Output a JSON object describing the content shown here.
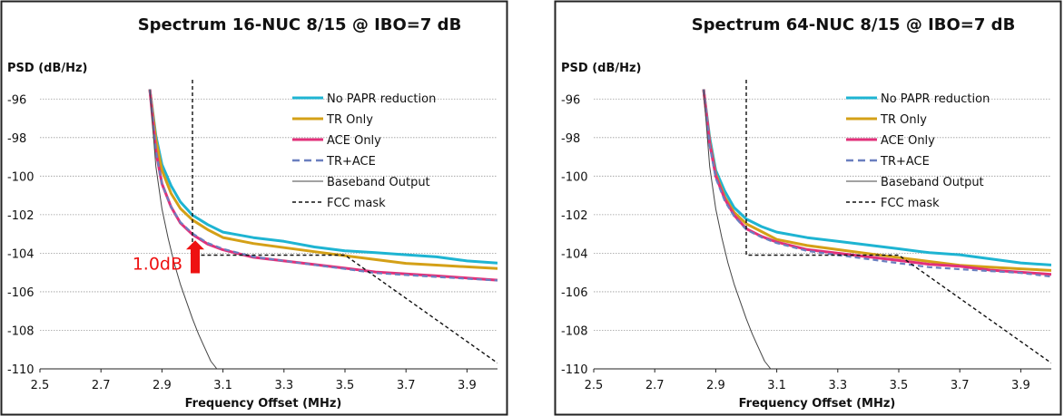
{
  "chart_data": [
    {
      "type": "line",
      "title": "Spectrum 16-NUC 8/15 @ IBO=7 dB",
      "xlabel": "Frequency Offset (MHz)",
      "ylabel": "PSD (dB/Hz)",
      "xlim": [
        2.5,
        4.0
      ],
      "ylim": [
        -110,
        -95
      ],
      "xticks": [
        "2.5",
        "2.7",
        "2.9",
        "3.1",
        "3.3",
        "3.5",
        "3.7",
        "3.9"
      ],
      "yticks": [
        "-96",
        "-98",
        "-100",
        "-102",
        "-104",
        "-106",
        "-108",
        "-110"
      ],
      "grid": "horizontal",
      "legend_position": "top-right",
      "series": [
        {
          "name": "No PAPR reduction",
          "color": "#1eb4d2",
          "style": "solid",
          "x": [
            2.86,
            2.88,
            2.9,
            2.93,
            2.96,
            3.0,
            3.05,
            3.1,
            3.2,
            3.3,
            3.4,
            3.5,
            3.6,
            3.7,
            3.8,
            3.9,
            4.0
          ],
          "y": [
            -95.5,
            -97.9,
            -99.4,
            -100.5,
            -101.3,
            -102.0,
            -102.5,
            -102.9,
            -103.2,
            -103.4,
            -103.7,
            -103.9,
            -104.0,
            -104.1,
            -104.2,
            -104.4,
            -104.5
          ]
        },
        {
          "name": "TR Only",
          "color": "#d4a017",
          "style": "solid",
          "x": [
            2.86,
            2.88,
            2.9,
            2.93,
            2.96,
            3.0,
            3.05,
            3.1,
            3.2,
            3.3,
            3.4,
            3.5,
            3.6,
            3.7,
            3.8,
            3.9,
            4.0
          ],
          "y": [
            -95.5,
            -98.1,
            -99.7,
            -100.9,
            -101.7,
            -102.3,
            -102.8,
            -103.2,
            -103.5,
            -103.7,
            -103.9,
            -104.1,
            -104.3,
            -104.5,
            -104.6,
            -104.7,
            -104.8
          ]
        },
        {
          "name": "ACE Only",
          "color": "#e2307a",
          "style": "solid",
          "x": [
            2.86,
            2.88,
            2.9,
            2.93,
            2.96,
            3.0,
            3.05,
            3.1,
            3.2,
            3.3,
            3.4,
            3.5,
            3.6,
            3.7,
            3.8,
            3.9,
            4.0
          ],
          "y": [
            -95.5,
            -98.7,
            -100.4,
            -101.6,
            -102.4,
            -103.0,
            -103.5,
            -103.8,
            -104.2,
            -104.4,
            -104.6,
            -104.8,
            -105.0,
            -105.1,
            -105.2,
            -105.3,
            -105.4
          ]
        },
        {
          "name": "TR+ACE",
          "color": "#6a7fbf",
          "style": "dashed",
          "x": [
            2.86,
            2.88,
            2.9,
            2.93,
            2.96,
            3.0,
            3.05,
            3.1,
            3.2,
            3.3,
            3.4,
            3.5,
            3.6,
            3.7,
            3.8,
            3.9,
            4.0
          ],
          "y": [
            -95.5,
            -98.7,
            -100.4,
            -101.6,
            -102.4,
            -103.0,
            -103.5,
            -103.8,
            -104.2,
            -104.4,
            -104.6,
            -104.8,
            -105.0,
            -105.1,
            -105.2,
            -105.3,
            -105.4
          ]
        },
        {
          "name": "Baseband Output",
          "color": "#444444",
          "style": "thin",
          "x": [
            2.86,
            2.88,
            2.9,
            2.92,
            2.94,
            2.96,
            2.98,
            3.0,
            3.02,
            3.04,
            3.06,
            3.08
          ],
          "y": [
            -95.5,
            -99.5,
            -101.7,
            -103.2,
            -104.5,
            -105.6,
            -106.5,
            -107.4,
            -108.2,
            -108.9,
            -109.6,
            -110.0
          ]
        },
        {
          "name": "FCC mask",
          "color": "#111111",
          "style": "dotted",
          "x": [
            3.0,
            3.0,
            3.5,
            4.0
          ],
          "y": [
            -95.0,
            -104.1,
            -104.1,
            -109.7
          ]
        }
      ],
      "annotation": {
        "text": "1.0dB",
        "x": 3.0,
        "y_from": -104.1,
        "y_to": -103.1,
        "color": "#ee1111"
      }
    },
    {
      "type": "line",
      "title": "Spectrum 64-NUC 8/15 @ IBO=7 dB",
      "xlabel": "Frequency Offset (MHz)",
      "ylabel": "PSD (dB/Hz)",
      "xlim": [
        2.5,
        4.0
      ],
      "ylim": [
        -110,
        -95
      ],
      "xticks": [
        "2.5",
        "2.7",
        "2.9",
        "3.1",
        "3.3",
        "3.5",
        "3.7",
        "3.9"
      ],
      "yticks": [
        "-96",
        "-98",
        "-100",
        "-102",
        "-104",
        "-106",
        "-108",
        "-110"
      ],
      "grid": "horizontal",
      "legend_position": "top-right",
      "series": [
        {
          "name": "No PAPR reduction",
          "color": "#1eb4d2",
          "style": "solid",
          "x": [
            2.86,
            2.88,
            2.9,
            2.93,
            2.96,
            3.0,
            3.05,
            3.1,
            3.2,
            3.3,
            3.4,
            3.5,
            3.6,
            3.7,
            3.8,
            3.9,
            4.0
          ],
          "y": [
            -95.5,
            -98.0,
            -99.7,
            -100.8,
            -101.6,
            -102.2,
            -102.6,
            -102.9,
            -103.2,
            -103.4,
            -103.6,
            -103.8,
            -104.0,
            -104.1,
            -104.3,
            -104.5,
            -104.6
          ]
        },
        {
          "name": "TR Only",
          "color": "#d4a017",
          "style": "solid",
          "x": [
            2.86,
            2.88,
            2.9,
            2.93,
            2.96,
            3.0,
            3.05,
            3.1,
            3.2,
            3.3,
            3.4,
            3.5,
            3.6,
            3.7,
            3.8,
            3.9,
            4.0
          ],
          "y": [
            -95.5,
            -98.2,
            -99.9,
            -101.1,
            -101.9,
            -102.5,
            -102.9,
            -103.3,
            -103.6,
            -103.8,
            -104.0,
            -104.2,
            -104.4,
            -104.6,
            -104.7,
            -104.8,
            -104.9
          ]
        },
        {
          "name": "ACE Only",
          "color": "#e2307a",
          "style": "solid",
          "x": [
            2.86,
            2.88,
            2.9,
            2.93,
            2.96,
            3.0,
            3.05,
            3.1,
            3.2,
            3.3,
            3.4,
            3.5,
            3.6,
            3.7,
            3.8,
            3.9,
            4.0
          ],
          "y": [
            -95.5,
            -98.3,
            -100.0,
            -101.2,
            -102.0,
            -102.7,
            -103.1,
            -103.4,
            -103.8,
            -104.0,
            -104.2,
            -104.4,
            -104.6,
            -104.7,
            -104.9,
            -105.0,
            -105.1
          ]
        },
        {
          "name": "TR+ACE",
          "color": "#6a7fbf",
          "style": "dashed",
          "x": [
            2.86,
            2.88,
            2.9,
            2.93,
            2.96,
            3.0,
            3.05,
            3.1,
            3.2,
            3.3,
            3.4,
            3.5,
            3.6,
            3.7,
            3.8,
            3.9,
            4.0
          ],
          "y": [
            -95.5,
            -98.4,
            -100.1,
            -101.3,
            -102.1,
            -102.8,
            -103.2,
            -103.5,
            -103.9,
            -104.1,
            -104.3,
            -104.5,
            -104.7,
            -104.8,
            -104.9,
            -105.0,
            -105.2
          ]
        },
        {
          "name": "Baseband Output",
          "color": "#444444",
          "style": "thin",
          "x": [
            2.86,
            2.88,
            2.9,
            2.92,
            2.94,
            2.96,
            2.98,
            3.0,
            3.02,
            3.04,
            3.06,
            3.08
          ],
          "y": [
            -95.5,
            -99.5,
            -101.7,
            -103.2,
            -104.5,
            -105.6,
            -106.5,
            -107.4,
            -108.2,
            -108.9,
            -109.6,
            -110.0
          ]
        },
        {
          "name": "FCC mask",
          "color": "#111111",
          "style": "dotted",
          "x": [
            3.0,
            3.0,
            3.5,
            4.0
          ],
          "y": [
            -95.0,
            -104.1,
            -104.1,
            -109.7
          ]
        }
      ]
    }
  ]
}
